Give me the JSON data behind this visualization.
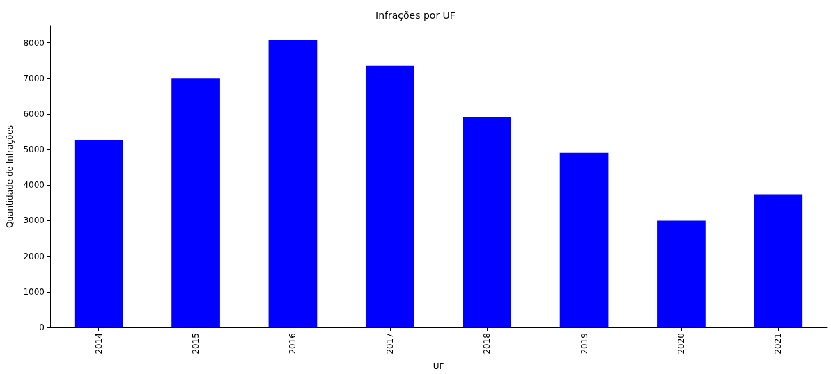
{
  "chart_data": {
    "type": "bar",
    "title": "Infrações por UF",
    "xlabel": "UF",
    "ylabel": "Quantidade de Infrações",
    "categories": [
      "2014",
      "2015",
      "2016",
      "2017",
      "2018",
      "2019",
      "2020",
      "2021"
    ],
    "values": [
      5260,
      7010,
      8070,
      7350,
      5900,
      4910,
      3000,
      3740
    ],
    "color": "#0000ff",
    "ylim": [
      0,
      8480
    ],
    "yticks": [
      0,
      1000,
      2000,
      3000,
      4000,
      5000,
      6000,
      7000,
      8000
    ],
    "grid": false
  }
}
